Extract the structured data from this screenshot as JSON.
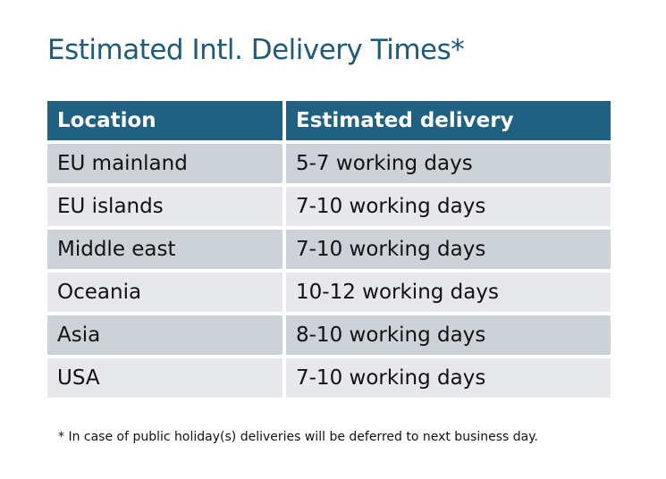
{
  "title": "Estimated Intl. Delivery Times*",
  "table": {
    "headers": [
      "Location",
      "Estimated delivery"
    ],
    "rows": [
      [
        "EU mainland",
        "5-7 working days"
      ],
      [
        "EU islands",
        "7-10 working days"
      ],
      [
        "Middle east",
        "7-10 working days"
      ],
      [
        "Oceania",
        "10-12 working days"
      ],
      [
        "Asia",
        "8-10 working days"
      ],
      [
        "USA",
        "7-10 working days"
      ]
    ]
  },
  "footnote": "* In case of public holiday(s) deliveries will be deferred to next business day.",
  "colors": {
    "header": "#206080",
    "title": "#1f5a78",
    "row_dark": "#cdd1d8",
    "row_light": "#e6e8eb"
  }
}
